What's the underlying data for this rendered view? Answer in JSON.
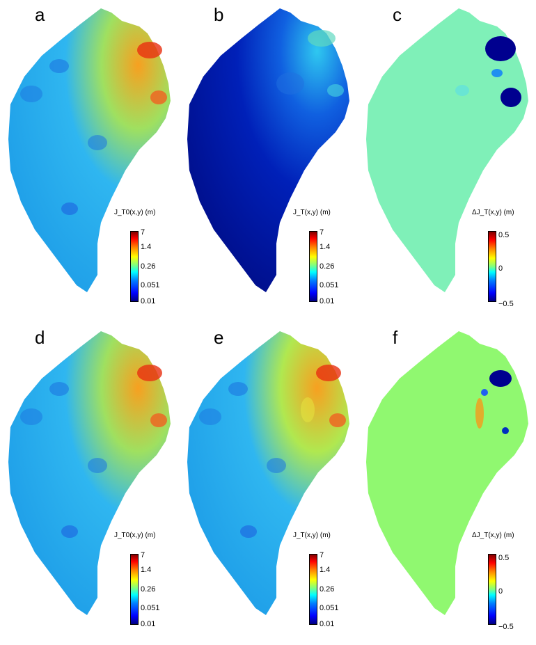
{
  "panels": [
    {
      "id": "a",
      "label": "a",
      "colorbar_title": "J_T0(x,y) (m)",
      "scale": "log",
      "ticks": [
        "7",
        "1.4",
        "0.26",
        "0.051",
        "0.01"
      ],
      "dominant_color": "#2fb6f0",
      "coast_color": "#f7a020"
    },
    {
      "id": "b",
      "label": "b",
      "colorbar_title": "J_T(x,y) (m)",
      "scale": "log",
      "ticks": [
        "7",
        "1.4",
        "0.26",
        "0.051",
        "0.01"
      ],
      "dominant_color": "#001aa8",
      "coast_color": "#2fc8f0"
    },
    {
      "id": "c",
      "label": "c",
      "colorbar_title": "ΔJ_T(x,y) (m)",
      "scale": "diff",
      "ticks": [
        "0.5",
        "0",
        "−0.5"
      ],
      "dominant_color": "#7ff0b8",
      "coast_color": "#00007f"
    },
    {
      "id": "d",
      "label": "d",
      "colorbar_title": "J_T0(x,y) (m)",
      "scale": "log",
      "ticks": [
        "7",
        "1.4",
        "0.26",
        "0.051",
        "0.01"
      ],
      "dominant_color": "#2fb6f0",
      "coast_color": "#f7a020"
    },
    {
      "id": "e",
      "label": "e",
      "colorbar_title": "J_T(x,y) (m)",
      "scale": "log",
      "ticks": [
        "7",
        "1.4",
        "0.26",
        "0.051",
        "0.01"
      ],
      "dominant_color": "#2fb6f0",
      "coast_color": "#f7a020"
    },
    {
      "id": "f",
      "label": "f",
      "colorbar_title": "ΔJ_T(x,y) (m)",
      "scale": "diff",
      "ticks": [
        "0.5",
        "0",
        "−0.5"
      ],
      "dominant_color": "#90f870",
      "coast_color": "#00007f"
    }
  ]
}
